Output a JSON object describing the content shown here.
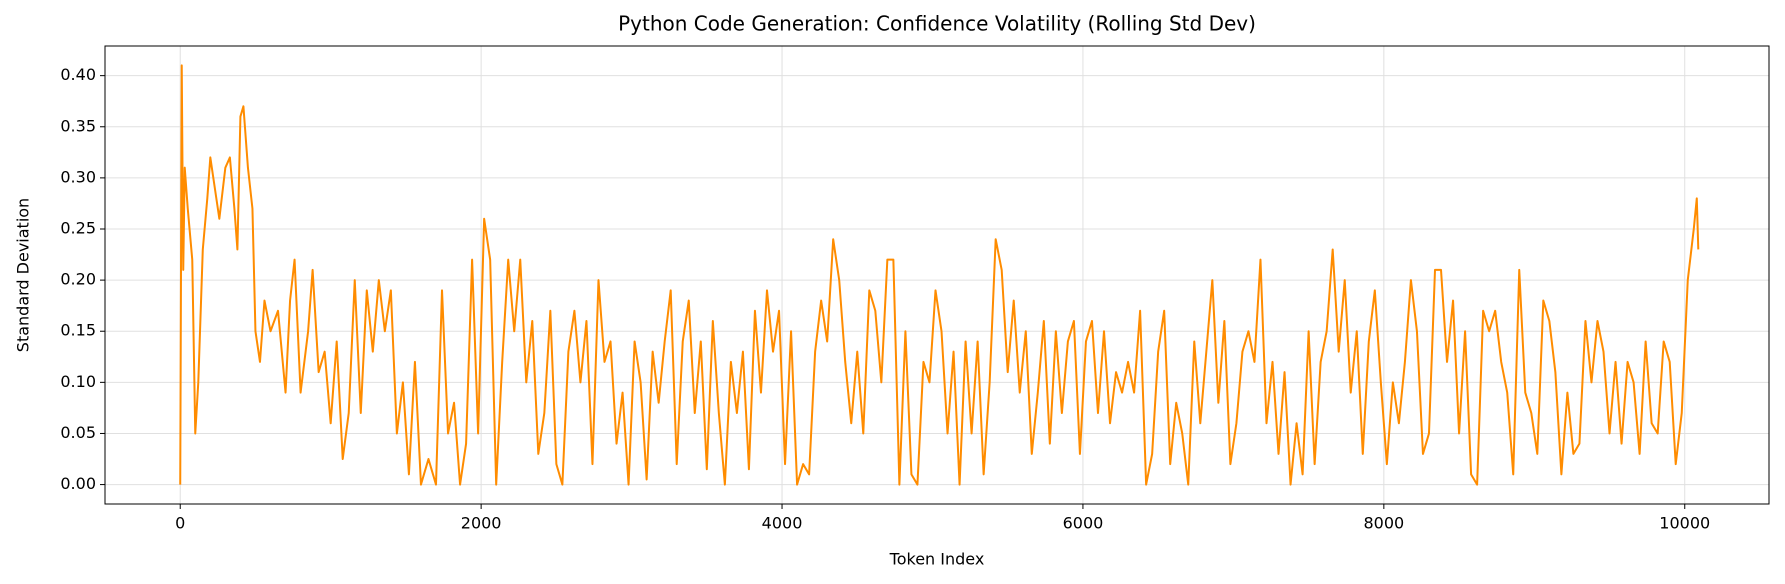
{
  "chart_data": {
    "type": "line",
    "title": "Python Code Generation: Confidence Volatility (Rolling Std Dev)",
    "x_label": "Token Index",
    "y_label": "Standard Deviation",
    "x": [
      0,
      10,
      20,
      30,
      50,
      80,
      100,
      120,
      150,
      180,
      200,
      230,
      260,
      300,
      330,
      360,
      380,
      400,
      420,
      450,
      480,
      500,
      530,
      560,
      600,
      650,
      700,
      730,
      760,
      800,
      850,
      880,
      920,
      960,
      1000,
      1040,
      1080,
      1120,
      1160,
      1200,
      1240,
      1280,
      1320,
      1360,
      1400,
      1440,
      1480,
      1520,
      1560,
      1600,
      1650,
      1700,
      1740,
      1780,
      1820,
      1860,
      1900,
      1940,
      1980,
      2020,
      2060,
      2100,
      2140,
      2180,
      2220,
      2260,
      2300,
      2340,
      2380,
      2420,
      2460,
      2500,
      2540,
      2580,
      2620,
      2660,
      2700,
      2740,
      2780,
      2820,
      2860,
      2900,
      2940,
      2980,
      3020,
      3060,
      3100,
      3140,
      3180,
      3220,
      3260,
      3300,
      3340,
      3380,
      3420,
      3460,
      3500,
      3540,
      3580,
      3620,
      3660,
      3700,
      3740,
      3780,
      3820,
      3860,
      3900,
      3940,
      3980,
      4020,
      4060,
      4100,
      4140,
      4180,
      4220,
      4260,
      4300,
      4340,
      4380,
      4420,
      4460,
      4500,
      4540,
      4580,
      4620,
      4660,
      4700,
      4740,
      4780,
      4820,
      4860,
      4900,
      4940,
      4980,
      5020,
      5060,
      5100,
      5140,
      5180,
      5220,
      5260,
      5300,
      5340,
      5380,
      5420,
      5460,
      5500,
      5540,
      5580,
      5620,
      5660,
      5700,
      5740,
      5780,
      5820,
      5860,
      5900,
      5940,
      5980,
      6020,
      6060,
      6100,
      6140,
      6180,
      6220,
      6260,
      6300,
      6340,
      6380,
      6420,
      6460,
      6500,
      6540,
      6580,
      6620,
      6660,
      6700,
      6740,
      6780,
      6820,
      6860,
      6900,
      6940,
      6980,
      7020,
      7060,
      7100,
      7140,
      7180,
      7220,
      7260,
      7300,
      7340,
      7380,
      7420,
      7460,
      7500,
      7540,
      7580,
      7620,
      7660,
      7700,
      7740,
      7780,
      7820,
      7860,
      7900,
      7940,
      7980,
      8020,
      8060,
      8100,
      8140,
      8180,
      8220,
      8260,
      8300,
      8340,
      8380,
      8420,
      8460,
      8500,
      8540,
      8580,
      8620,
      8660,
      8700,
      8740,
      8780,
      8820,
      8860,
      8900,
      8940,
      8980,
      9020,
      9060,
      9100,
      9140,
      9180,
      9220,
      9260,
      9300,
      9340,
      9380,
      9420,
      9460,
      9500,
      9540,
      9580,
      9620,
      9660,
      9700,
      9740,
      9780,
      9820,
      9860,
      9900,
      9940,
      9980,
      10020,
      10060,
      10080,
      10090
    ],
    "series": [
      {
        "color": "#ff8c00",
        "values": [
          0.0,
          0.41,
          0.21,
          0.31,
          0.27,
          0.22,
          0.05,
          0.1,
          0.23,
          0.28,
          0.32,
          0.29,
          0.26,
          0.31,
          0.32,
          0.27,
          0.23,
          0.36,
          0.37,
          0.31,
          0.27,
          0.15,
          0.12,
          0.18,
          0.15,
          0.17,
          0.09,
          0.18,
          0.22,
          0.09,
          0.15,
          0.21,
          0.11,
          0.13,
          0.06,
          0.14,
          0.025,
          0.07,
          0.2,
          0.07,
          0.19,
          0.13,
          0.2,
          0.15,
          0.19,
          0.05,
          0.1,
          0.01,
          0.12,
          0.0,
          0.025,
          0.0,
          0.19,
          0.05,
          0.08,
          0.0,
          0.04,
          0.22,
          0.05,
          0.26,
          0.22,
          0.0,
          0.12,
          0.22,
          0.15,
          0.22,
          0.1,
          0.16,
          0.03,
          0.07,
          0.17,
          0.02,
          0.0,
          0.13,
          0.17,
          0.1,
          0.16,
          0.02,
          0.2,
          0.12,
          0.14,
          0.04,
          0.09,
          0.0,
          0.14,
          0.1,
          0.005,
          0.13,
          0.08,
          0.14,
          0.19,
          0.02,
          0.14,
          0.18,
          0.07,
          0.14,
          0.015,
          0.16,
          0.07,
          0.0,
          0.12,
          0.07,
          0.13,
          0.015,
          0.17,
          0.09,
          0.19,
          0.13,
          0.17,
          0.02,
          0.15,
          0.0,
          0.02,
          0.01,
          0.13,
          0.18,
          0.14,
          0.24,
          0.2,
          0.12,
          0.06,
          0.13,
          0.05,
          0.19,
          0.17,
          0.1,
          0.22,
          0.22,
          0.0,
          0.15,
          0.01,
          0.0,
          0.12,
          0.1,
          0.19,
          0.15,
          0.05,
          0.13,
          0.0,
          0.14,
          0.05,
          0.14,
          0.01,
          0.1,
          0.24,
          0.21,
          0.11,
          0.18,
          0.09,
          0.15,
          0.03,
          0.09,
          0.16,
          0.04,
          0.15,
          0.07,
          0.14,
          0.16,
          0.03,
          0.14,
          0.16,
          0.07,
          0.15,
          0.06,
          0.11,
          0.09,
          0.12,
          0.09,
          0.17,
          0.0,
          0.03,
          0.13,
          0.17,
          0.02,
          0.08,
          0.05,
          0.0,
          0.14,
          0.06,
          0.13,
          0.2,
          0.08,
          0.16,
          0.02,
          0.06,
          0.13,
          0.15,
          0.12,
          0.22,
          0.06,
          0.12,
          0.03,
          0.11,
          0.0,
          0.06,
          0.01,
          0.15,
          0.02,
          0.12,
          0.15,
          0.23,
          0.13,
          0.2,
          0.09,
          0.15,
          0.03,
          0.14,
          0.19,
          0.1,
          0.02,
          0.1,
          0.06,
          0.12,
          0.2,
          0.15,
          0.03,
          0.05,
          0.21,
          0.21,
          0.12,
          0.18,
          0.05,
          0.15,
          0.01,
          0.0,
          0.17,
          0.15,
          0.17,
          0.12,
          0.09,
          0.01,
          0.21,
          0.09,
          0.07,
          0.03,
          0.18,
          0.16,
          0.11,
          0.01,
          0.09,
          0.03,
          0.04,
          0.16,
          0.1,
          0.16,
          0.13,
          0.05,
          0.12,
          0.04,
          0.12,
          0.1,
          0.03,
          0.14,
          0.06,
          0.05,
          0.14,
          0.12,
          0.02,
          0.07,
          0.2,
          0.25,
          0.28,
          0.23
        ]
      }
    ],
    "xlim": [
      -500,
      10560
    ],
    "ylim": [
      -0.019,
      0.429
    ],
    "xticks": [
      0,
      2000,
      4000,
      6000,
      8000,
      10000
    ],
    "yticks": [
      {
        "value": 0,
        "label": "0.00"
      },
      {
        "value": 0.05,
        "label": "0.05"
      },
      {
        "value": 0.1,
        "label": "0.10"
      },
      {
        "value": 0.15,
        "label": "0.15"
      },
      {
        "value": 0.2,
        "label": "0.20"
      },
      {
        "value": 0.25,
        "label": "0.25"
      },
      {
        "value": 0.3,
        "label": "0.30"
      },
      {
        "value": 0.35,
        "label": "0.35"
      },
      {
        "value": 0.4,
        "label": "0.40"
      }
    ],
    "grid": true
  }
}
